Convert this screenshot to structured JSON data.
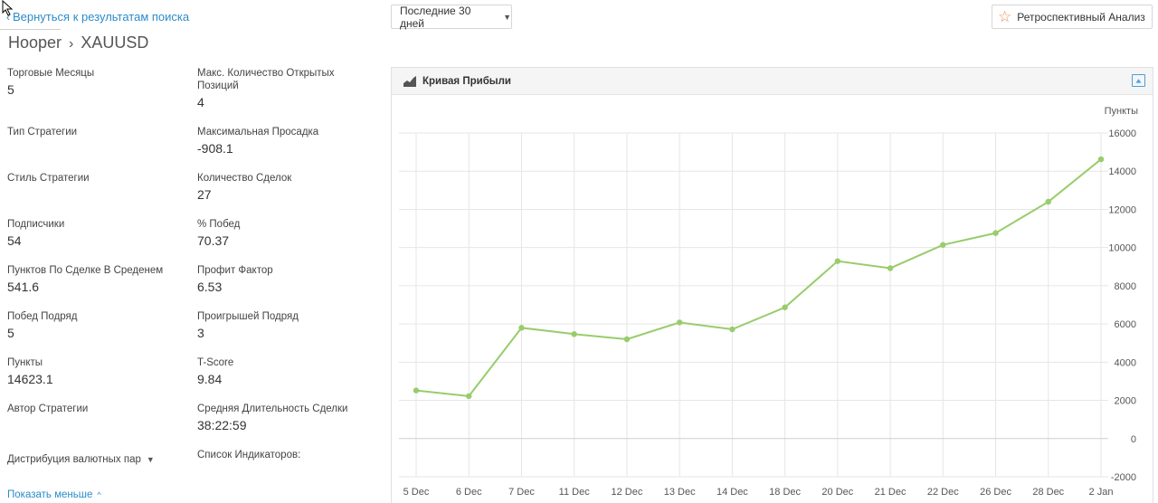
{
  "nav": {
    "back_label": "Вернуться к результатам поиска",
    "back_chevron": "‹"
  },
  "header": {
    "title": "Hooper",
    "separator": "›",
    "symbol": "XAUUSD"
  },
  "period": {
    "selected": "Последние 30 дней",
    "caret": "▼"
  },
  "retro": {
    "label": "Ретроспективный Анализ",
    "icon": "star-icon",
    "icon_char": "☆",
    "icon_color": "#f08a4b"
  },
  "stats": {
    "left": [
      {
        "label": "Торговые Месяцы",
        "value": "5"
      },
      {
        "label": "Тип Стратегии",
        "value": ""
      },
      {
        "label": "Стиль Стратегии",
        "value": ""
      },
      {
        "label": "Подписчики",
        "value": "54"
      },
      {
        "label": "Пунктов По Сделке В Среденем",
        "value": "541.6"
      },
      {
        "label": "Побед Подряд",
        "value": "5"
      },
      {
        "label": "Пункты",
        "value": "14623.1"
      },
      {
        "label": "Автор Стратегии",
        "value": ""
      }
    ],
    "right": [
      {
        "label": "Макс. Количество Открытых Позиций",
        "value": "4"
      },
      {
        "label": "Максимальная Просадка",
        "value": "-908.1"
      },
      {
        "label": "Количество Сделок",
        "value": "27"
      },
      {
        "label": "% Побед",
        "value": "70.37"
      },
      {
        "label": "Профит Фактор",
        "value": "6.53"
      },
      {
        "label": "Проигрышей Подряд",
        "value": "3"
      },
      {
        "label": "T-Score",
        "value": "9.84"
      },
      {
        "label": "Средняя Длительность Сделки",
        "value": "38:22:59"
      },
      {
        "label": "Список Индикаторов:",
        "value": ""
      }
    ]
  },
  "distribution": {
    "label": "Дистрибуция валютных пар",
    "caret": "▼"
  },
  "show_less": {
    "label": "Показать меньше",
    "caret": "^"
  },
  "panel": {
    "title": "Кривая Прибыли",
    "icon": "area-chart-icon",
    "export_icon": "export-icon"
  },
  "colors": {
    "accent": "#2a8ccb",
    "line": "#98cc6c",
    "grid": "#e6e6e6"
  },
  "chart_data": {
    "type": "line",
    "ylabel": "Пункты",
    "categories": [
      "5 Dec",
      "6 Dec",
      "7 Dec",
      "11 Dec",
      "12 Dec",
      "13 Dec",
      "14 Dec",
      "18 Dec",
      "20 Dec",
      "21 Dec",
      "22 Dec",
      "26 Dec",
      "28 Dec",
      "2 Jan"
    ],
    "values": [
      2520,
      2220,
      5800,
      5470,
      5200,
      6080,
      5720,
      6870,
      9290,
      8920,
      10140,
      10760,
      12400,
      14623
    ],
    "ylim": [
      -2000,
      16000
    ],
    "yticks": [
      -2000,
      0,
      2000,
      4000,
      6000,
      8000,
      10000,
      12000,
      14000,
      16000
    ],
    "grid": true,
    "legend": "none"
  }
}
